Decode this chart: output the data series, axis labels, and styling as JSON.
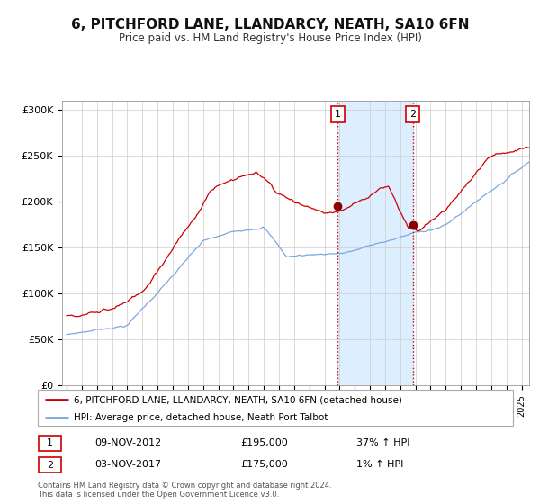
{
  "title": "6, PITCHFORD LANE, LLANDARCY, NEATH, SA10 6FN",
  "subtitle": "Price paid vs. HM Land Registry's House Price Index (HPI)",
  "legend_line1": "6, PITCHFORD LANE, LLANDARCY, NEATH, SA10 6FN (detached house)",
  "legend_line2": "HPI: Average price, detached house, Neath Port Talbot",
  "sale1_date": "09-NOV-2012",
  "sale1_price": 195000,
  "sale1_pct": "37% ↑ HPI",
  "sale2_date": "03-NOV-2017",
  "sale2_price": 175000,
  "sale2_pct": "1% ↑ HPI",
  "footnote": "Contains HM Land Registry data © Crown copyright and database right 2024.\nThis data is licensed under the Open Government Licence v3.0.",
  "red_color": "#cc0000",
  "blue_color": "#7aaadd",
  "sale_dot_color": "#8b0000",
  "bg_color": "#ffffff",
  "grid_color": "#cccccc",
  "shade_color": "#ddeeff",
  "ylim": [
    0,
    310000
  ],
  "yticks": [
    0,
    50000,
    100000,
    150000,
    200000,
    250000,
    300000
  ],
  "sale1_x": 2012.88,
  "sale2_x": 2017.84,
  "sale1_y": 195000,
  "sale2_y": 175000,
  "xmin": 1994.7,
  "xmax": 2025.5
}
